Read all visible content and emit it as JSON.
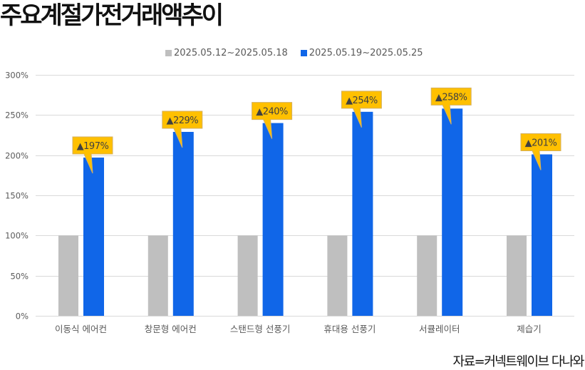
{
  "title": "주요계절가전거래액추이",
  "source": "자료=커넥트웨이브 다나와",
  "colors": {
    "series_prev": "#BFBFBF",
    "series_curr": "#1066E8",
    "callout_fill": "#FFC000",
    "callout_border": "#D4B060",
    "callout_text": "#404040",
    "grid": "#D9D9D9",
    "axis_text": "#595959"
  },
  "legend": [
    {
      "label": "2025.05.12~2025.05.18",
      "color": "#BFBFBF"
    },
    {
      "label": "2025.05.19~2025.05.25",
      "color": "#1066E8"
    }
  ],
  "chart_data": {
    "type": "bar",
    "title": "주요계절가전거래액추이",
    "categories": [
      "이동식 에어컨",
      "창문형 에어컨",
      "스탠드형 선풍기",
      "휴대용 선풍기",
      "서큘레이터",
      "제습기"
    ],
    "series": [
      {
        "name": "2025.05.12~2025.05.18",
        "values": [
          100,
          100,
          100,
          100,
          100,
          100
        ]
      },
      {
        "name": "2025.05.19~2025.05.25",
        "values": [
          197,
          229,
          240,
          254,
          258,
          201
        ]
      }
    ],
    "annotations": [
      "▲197%",
      "▲229%",
      "▲240%",
      "▲254%",
      "▲258%",
      "▲201%"
    ],
    "xlabel": "",
    "ylabel": "",
    "ylim": [
      0,
      300
    ],
    "yticks": [
      "0%",
      "50%",
      "100%",
      "150%",
      "200%",
      "250%",
      "300%"
    ],
    "grid": true,
    "legend_position": "top"
  }
}
